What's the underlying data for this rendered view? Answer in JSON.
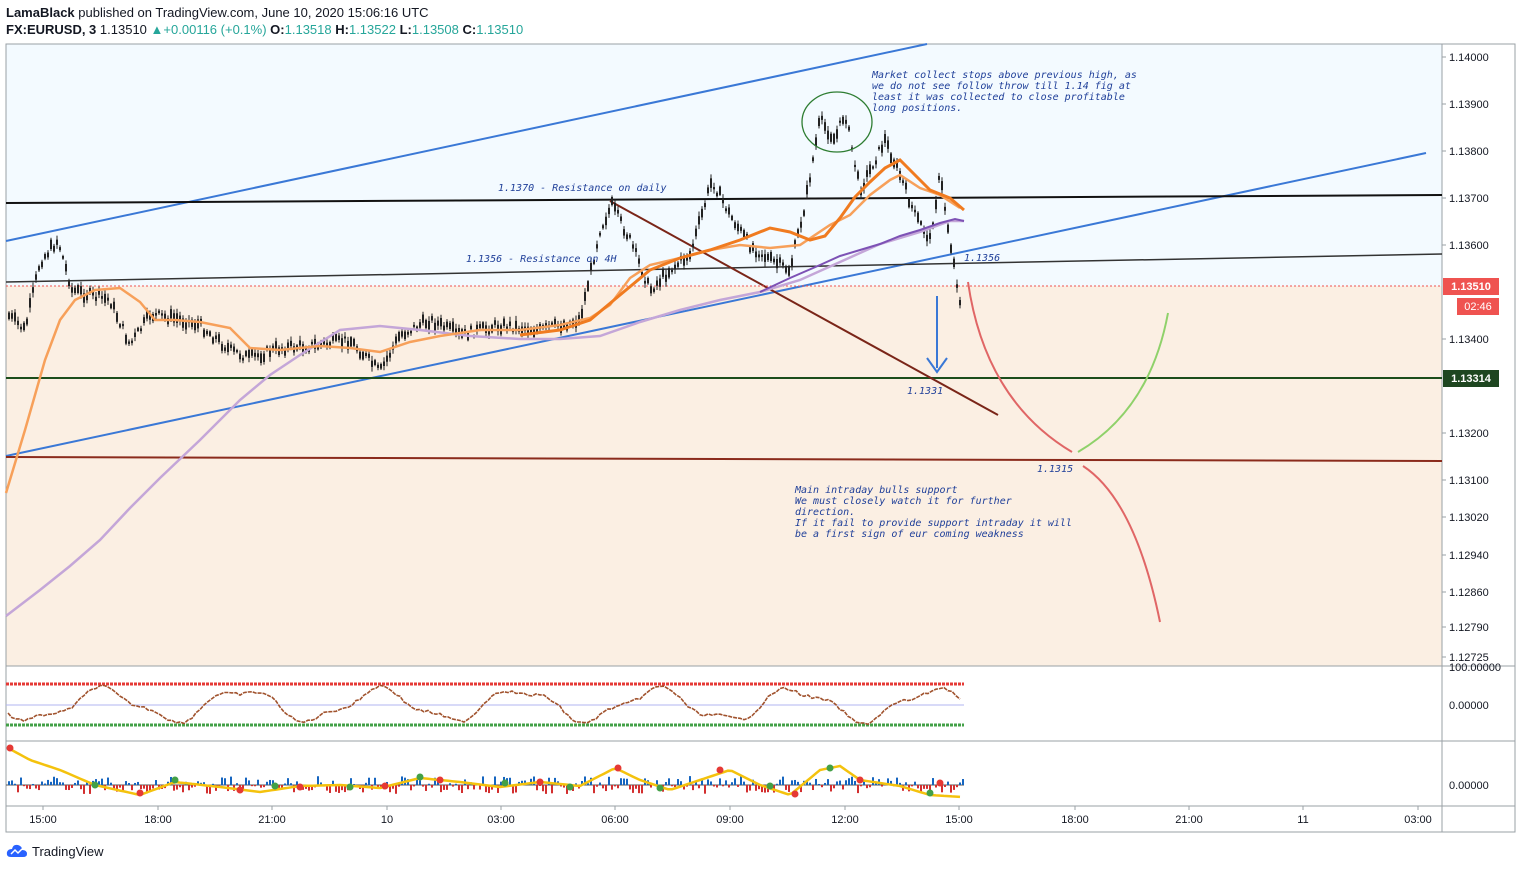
{
  "header": {
    "author": "LamaBlack",
    "published": "published on TradingView.com, June 10, 2020 15:06:16 UTC",
    "symbol": "FX:EURUSD, 3",
    "last": "1.13510",
    "change": "+0.00116 (+0.1%)",
    "o_label": "O:",
    "o_val": "1.13518",
    "h_label": "H:",
    "h_val": "1.13522",
    "l_label": "L:",
    "l_val": "1.13508",
    "c_label": "C:",
    "c_val": "1.13510"
  },
  "footer": {
    "brand": "TradingView"
  },
  "colors": {
    "resistance_zone": "#f3faff",
    "support_zone": "#fbefe3",
    "channel": "#3a78d6",
    "ema_fast": "#f7a05a",
    "ema_mid": "#f07b20",
    "ema_slow": "#7d52b5",
    "sma_long": "#c4a6d8",
    "green_level": "#1b4d1b",
    "brown_level": "#8b2b1c",
    "last_price_bg": "#ef5350",
    "level_tag_bg": "#1e4620"
  },
  "chart_data": {
    "type": "candlestick",
    "y_axis_ticks": [
      "1.14000",
      "1.13900",
      "1.13800",
      "1.13700",
      "1.13600",
      "1.13400",
      "1.13200",
      "1.13100",
      "1.13020",
      "1.12940",
      "1.12860",
      "1.12790",
      "1.12725"
    ],
    "x_axis_ticks": [
      "15:00",
      "18:00",
      "21:00",
      "10",
      "03:00",
      "06:00",
      "09:00",
      "12:00",
      "15:00",
      "18:00",
      "21:00",
      "11",
      "03:00"
    ],
    "price_tags": [
      {
        "value": "1.13510",
        "kind": "last_price"
      },
      {
        "value": "02:46",
        "kind": "countdown"
      },
      {
        "value": "1.13314",
        "kind": "level"
      }
    ],
    "lower_axis_ticks": [
      "100.00000",
      "0.00000",
      "0.00000"
    ],
    "annotations": [
      {
        "text": "1.1370 - Resistance on daily"
      },
      {
        "text": "1.1356 - Resistance on 4H"
      },
      {
        "text": "1.1356"
      },
      {
        "text": "1.1331"
      },
      {
        "text": "1.1315"
      },
      {
        "lines": [
          "Market collect stops above previous high, as",
          "we do not see follow throw till 1.14 fig at",
          "least it was collected to close profitable",
          "long positions."
        ]
      },
      {
        "lines": [
          "Main intraday bulls support",
          "We must closely watch it for further",
          "direction.",
          "If it fail to provide support intraday it will",
          "be a first sign of eur coming weakness"
        ]
      }
    ]
  }
}
